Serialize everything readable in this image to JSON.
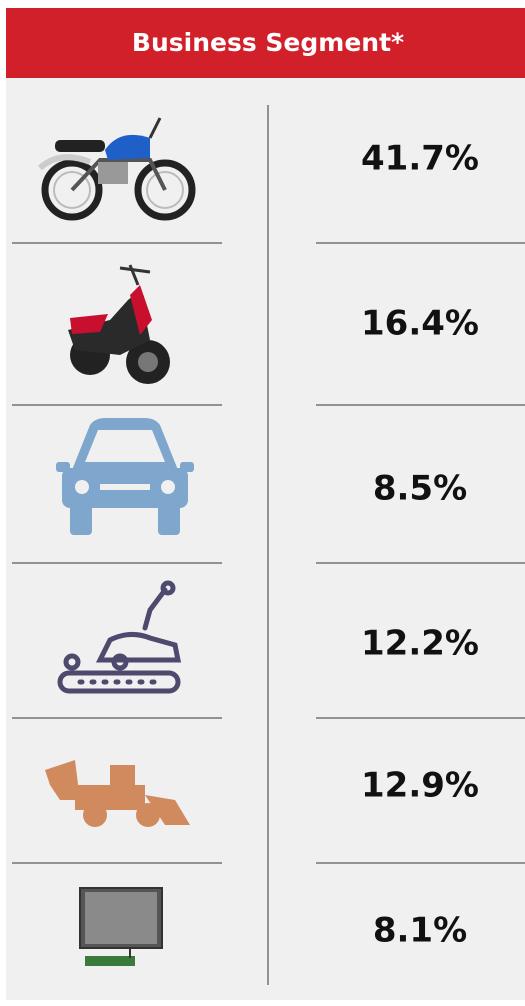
{
  "header": {
    "title": "Business Segment*"
  },
  "rows": [
    {
      "value": "41.7%"
    },
    {
      "value": "16.4%"
    },
    {
      "value": "8.5%"
    },
    {
      "value": "12.2%"
    },
    {
      "value": "12.9%"
    },
    {
      "value": "8.1%"
    }
  ]
}
